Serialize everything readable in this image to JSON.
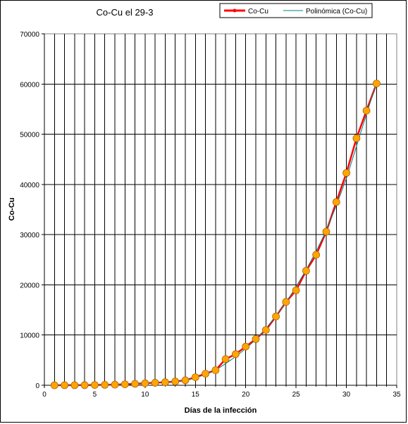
{
  "chart_data": {
    "type": "line",
    "title": "Co-Cu el 29-3",
    "xlabel": "Días de la infección",
    "ylabel": "Co-Cu",
    "xlim": [
      0,
      35
    ],
    "ylim": [
      0,
      70000
    ],
    "x_ticks": [
      "0",
      "5",
      "10",
      "15",
      "20",
      "25",
      "30",
      "35"
    ],
    "y_ticks": [
      "0",
      "10000",
      "20000",
      "30000",
      "40000",
      "50000",
      "60000",
      "70000"
    ],
    "grid": true,
    "legend_position": "top-right",
    "series": [
      {
        "name": "Co-Cu",
        "color": "#ff0000",
        "marker_color": "#ffa500",
        "x": [
          1,
          2,
          3,
          4,
          5,
          6,
          7,
          8,
          9,
          10,
          11,
          12,
          13,
          14,
          15,
          16,
          17,
          18,
          19,
          20,
          21,
          22,
          23,
          24,
          25,
          26,
          27,
          28,
          29,
          30,
          31,
          32,
          33
        ],
        "values": [
          0,
          10,
          20,
          30,
          50,
          80,
          120,
          200,
          300,
          400,
          500,
          600,
          750,
          1000,
          1600,
          2300,
          3000,
          5200,
          6200,
          7700,
          9200,
          11000,
          13700,
          16600,
          18900,
          22800,
          26000,
          30600,
          36500,
          42300,
          49200,
          54700,
          60100
        ]
      },
      {
        "name": "Polinómica (Co-Cu)",
        "color": "#008080",
        "x": [
          1,
          2,
          3,
          4,
          5,
          6,
          7,
          8,
          9,
          10,
          11,
          12,
          13,
          14,
          15,
          16,
          17,
          18,
          19,
          20,
          21,
          22,
          23,
          24,
          25,
          26,
          27,
          28,
          29,
          30,
          31,
          32,
          33
        ],
        "values": [
          0,
          10,
          20,
          30,
          50,
          80,
          120,
          200,
          300,
          400,
          500,
          600,
          800,
          1100,
          1500,
          2100,
          3000,
          4300,
          5700,
          7300,
          9100,
          11300,
          13800,
          16500,
          19600,
          23000,
          26700,
          30800,
          35800,
          41200,
          47600,
          54000,
          60300
        ]
      }
    ]
  }
}
